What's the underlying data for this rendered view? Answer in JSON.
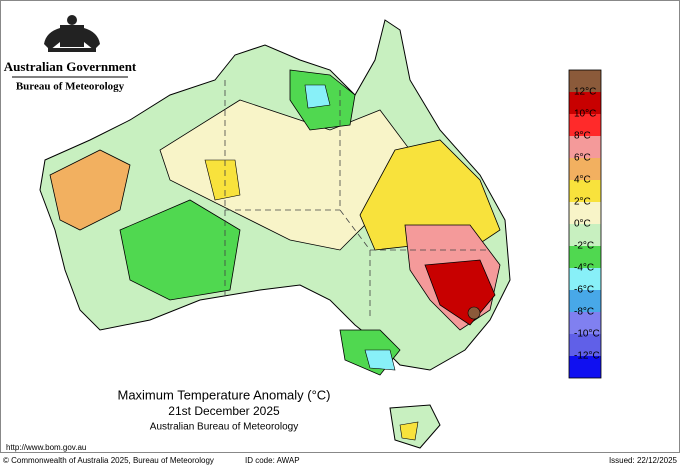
{
  "header": {
    "title": "Australian Government",
    "subtitle": "Bureau of Meteorology"
  },
  "legend": {
    "labels": [
      "12°C",
      "10°C",
      "8°C",
      "6°C",
      "4°C",
      "2°C",
      "0°C",
      "-2°C",
      "-4°C",
      "-6°C",
      "-8°C",
      "-10°C",
      "-12°C"
    ],
    "colors": [
      "#8b5a3a",
      "#c80000",
      "#ff2a2a",
      "#f49a9a",
      "#f2b060",
      "#f8e23c",
      "#f8f4c8",
      "#c8f0c0",
      "#50d850",
      "#88f0f8",
      "#48a8e8",
      "#8080f0",
      "#6060e8",
      "#1010f0"
    ]
  },
  "caption": {
    "title": "Maximum Temperature Anomaly (°C)",
    "date": "21st December 2025",
    "source": "Australian Bureau of Meteorology"
  },
  "footer": {
    "url": "http://www.bom.gov.au",
    "copyright": "© Commonwealth of Australia 2025, Bureau of Meteorology",
    "id_code": "ID code: AWAP",
    "issued": "Issued: 22/12/2025"
  }
}
